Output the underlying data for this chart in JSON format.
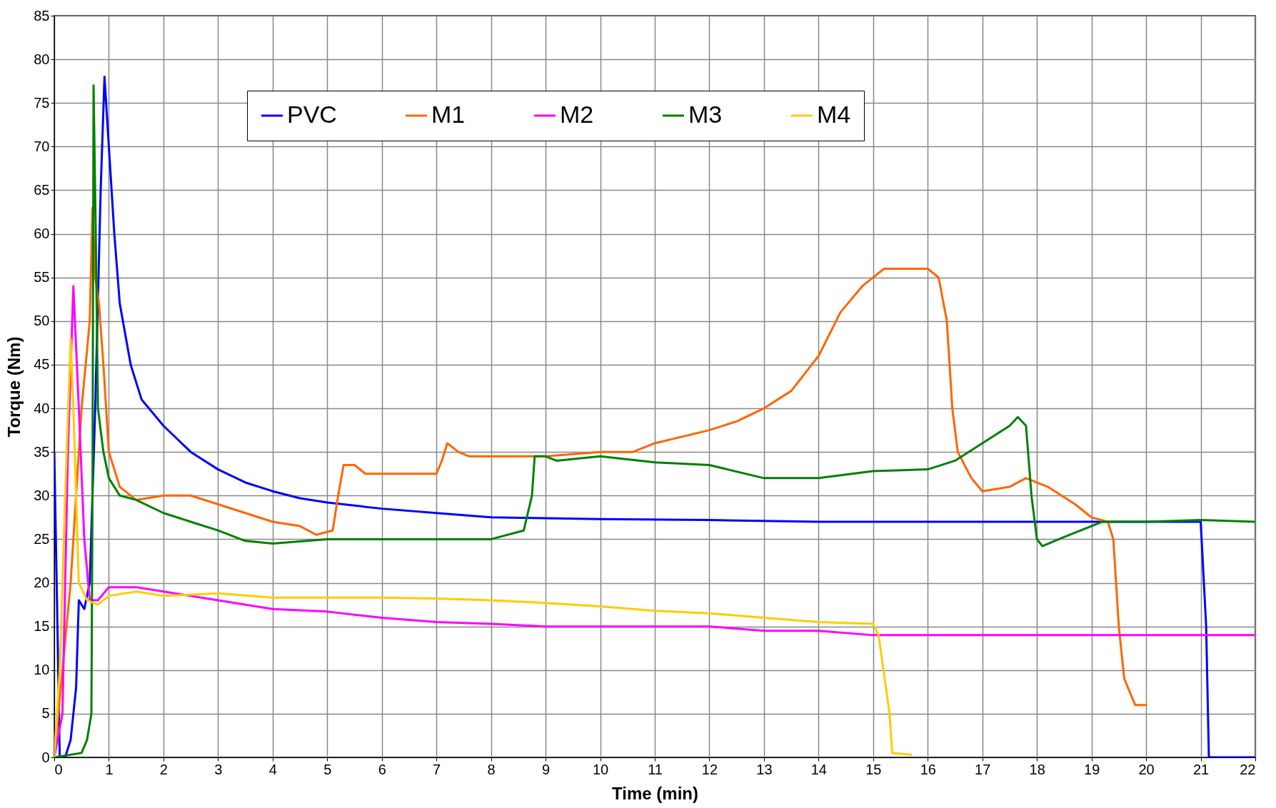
{
  "chart_data": {
    "type": "line",
    "xlabel": "Time (min)",
    "ylabel": "Torque (Nm)",
    "xlim": [
      0,
      22
    ],
    "ylim": [
      0,
      85
    ],
    "xticks": [
      0,
      1,
      2,
      3,
      4,
      5,
      6,
      7,
      8,
      9,
      10,
      11,
      12,
      13,
      14,
      15,
      16,
      17,
      18,
      19,
      20,
      21,
      22
    ],
    "yticks": [
      0,
      5,
      10,
      15,
      20,
      25,
      30,
      35,
      40,
      45,
      50,
      55,
      60,
      65,
      70,
      75,
      80,
      85
    ],
    "grid": true,
    "legend": "top",
    "marker": "none",
    "line_style": "solid",
    "series": [
      {
        "name": "PVC",
        "color": "#0000ff",
        "x": [
          0,
          0.05,
          0.1,
          0.2,
          0.3,
          0.4,
          0.45,
          0.55,
          0.65,
          0.75,
          0.85,
          0.92,
          1.0,
          1.1,
          1.2,
          1.4,
          1.6,
          2,
          2.5,
          3,
          3.5,
          4,
          4.5,
          5,
          6,
          7,
          8,
          9,
          10,
          12,
          14,
          16,
          18,
          20,
          21,
          21.1,
          21.15,
          22
        ],
        "values": [
          35,
          18,
          0,
          0,
          2,
          8,
          18,
          17,
          20,
          40,
          65,
          78,
          70,
          60,
          52,
          45,
          41,
          38,
          35,
          33,
          31.5,
          30.5,
          29.7,
          29.2,
          28.5,
          28,
          27.5,
          27.4,
          27.3,
          27.2,
          27,
          27,
          27,
          27,
          27,
          15,
          0,
          0
        ]
      },
      {
        "name": "M1",
        "color": "#ff6600",
        "x": [
          0,
          0.3,
          0.5,
          0.65,
          0.7,
          0.75,
          0.82,
          0.9,
          1.0,
          1.2,
          1.5,
          2,
          2.5,
          3,
          3.5,
          4,
          4.5,
          4.8,
          5.1,
          5.2,
          5.3,
          5.5,
          5.7,
          6,
          7,
          7.1,
          7.2,
          7.4,
          7.6,
          8,
          9,
          10,
          10.6,
          11,
          12,
          12.5,
          13,
          13.5,
          14,
          14.4,
          14.8,
          15.2,
          16,
          16.2,
          16.35,
          16.45,
          16.55,
          16.8,
          17,
          17.5,
          17.8,
          18.2,
          18.7,
          19,
          19.3,
          19.4,
          19.5,
          19.6,
          19.8,
          20
        ],
        "values": [
          0,
          20,
          40,
          50,
          63,
          55,
          52,
          45,
          35,
          31,
          29.5,
          30,
          30,
          29,
          28,
          27,
          26.5,
          25.5,
          26,
          30,
          33.5,
          33.5,
          32.5,
          32.5,
          32.5,
          34,
          36,
          35,
          34.5,
          34.5,
          34.5,
          35,
          35,
          36,
          37.5,
          38.5,
          40,
          42,
          46,
          51,
          54,
          56,
          56,
          55,
          50,
          40,
          35,
          32,
          30.5,
          31,
          32,
          31,
          29,
          27.5,
          27,
          25,
          15,
          9,
          6,
          6
        ]
      },
      {
        "name": "M2",
        "color": "#ff00ff",
        "x": [
          0,
          0.15,
          0.25,
          0.35,
          0.45,
          0.55,
          0.65,
          0.8,
          1.0,
          1.5,
          2,
          3,
          4,
          5,
          6,
          7,
          8,
          9,
          10,
          12,
          13,
          14,
          15,
          16,
          22
        ],
        "values": [
          0,
          5,
          35,
          54,
          40,
          25,
          18,
          18,
          19.5,
          19.5,
          19,
          18,
          17,
          16.7,
          16,
          15.5,
          15.3,
          15,
          15,
          15,
          14.5,
          14.5,
          14,
          14,
          14
        ]
      },
      {
        "name": "M3",
        "color": "#008000",
        "x": [
          0,
          0.5,
          0.6,
          0.68,
          0.7,
          0.72,
          0.76,
          0.8,
          0.9,
          1,
          1.2,
          1.5,
          2,
          2.5,
          3,
          3.5,
          4,
          5,
          6,
          7,
          8,
          8.6,
          8.75,
          8.8,
          9,
          9.2,
          10,
          11,
          12,
          13,
          14,
          15,
          16,
          16.5,
          17,
          17.5,
          17.65,
          17.8,
          17.9,
          18,
          18.1,
          18.4,
          18.8,
          19.2,
          20,
          21,
          22
        ],
        "values": [
          0,
          0.5,
          2,
          5,
          30,
          77,
          60,
          40,
          35,
          32,
          30,
          29.5,
          28,
          27,
          26,
          24.8,
          24.5,
          25,
          25,
          25,
          25,
          26,
          30,
          34.5,
          34.5,
          34,
          34.5,
          33.8,
          33.5,
          32,
          32,
          32.8,
          33,
          34,
          36,
          38,
          39,
          38,
          30,
          25,
          24.2,
          25,
          26,
          27,
          27,
          27.2,
          27
        ]
      },
      {
        "name": "M4",
        "color": "#ffcc00",
        "x": [
          0,
          0.1,
          0.2,
          0.3,
          0.35,
          0.45,
          0.6,
          0.8,
          1,
          1.5,
          2,
          3,
          4,
          5,
          6,
          7,
          8,
          9,
          10,
          11,
          12,
          13,
          14,
          15,
          15.1,
          15.3,
          15.35,
          15.7
        ],
        "values": [
          0,
          10,
          30,
          48,
          40,
          20,
          18,
          17.5,
          18.5,
          19,
          18.5,
          18.8,
          18.3,
          18.3,
          18.3,
          18.2,
          18,
          17.7,
          17.3,
          16.8,
          16.5,
          16,
          15.5,
          15.3,
          14,
          5,
          0.5,
          0.3
        ]
      }
    ]
  }
}
